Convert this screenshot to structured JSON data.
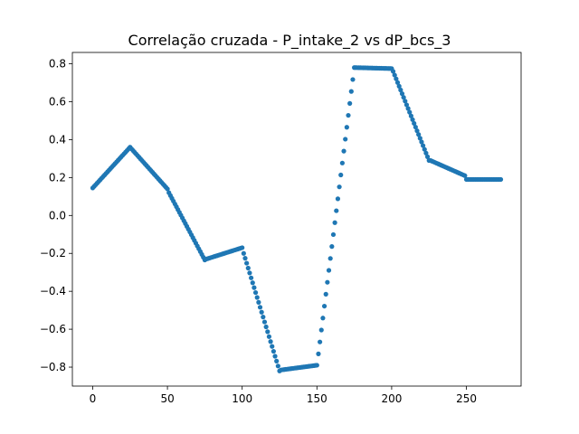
{
  "chart_data": {
    "type": "scatter",
    "title": "Correlação cruzada - P_intake_2 vs dP_bcs_3",
    "xlabel": "",
    "ylabel": "",
    "xlim": [
      -13.6,
      286.6
    ],
    "ylim": [
      -0.9,
      0.86
    ],
    "xticks": [
      0,
      50,
      100,
      150,
      200,
      250
    ],
    "yticks": [
      -0.8,
      -0.6,
      -0.4,
      -0.2,
      0.0,
      0.2,
      0.4,
      0.6,
      0.8
    ],
    "xtick_labels": [
      "0",
      "50",
      "100",
      "150",
      "200",
      "250"
    ],
    "ytick_labels": [
      "−0.8",
      "−0.6",
      "−0.4",
      "−0.2",
      "0.0",
      "0.2",
      "0.4",
      "0.6",
      "0.8"
    ],
    "grid": false,
    "marker_color": "#1f77b4",
    "segments": [
      {
        "x0": 0,
        "x1": 25,
        "y0": 0.145,
        "y1": 0.36
      },
      {
        "x0": 25,
        "x1": 50,
        "y0": 0.36,
        "y1": 0.14
      },
      {
        "x0": 51,
        "x1": 75,
        "y0": 0.12,
        "y1": -0.235
      },
      {
        "x0": 76,
        "x1": 100,
        "y0": -0.23,
        "y1": -0.17
      },
      {
        "x0": 101,
        "x1": 125,
        "y0": -0.2,
        "y1": -0.82
      },
      {
        "x0": 126,
        "x1": 150,
        "y0": -0.815,
        "y1": -0.79
      },
      {
        "x0": 151,
        "x1": 175,
        "y0": -0.73,
        "y1": 0.78
      },
      {
        "x0": 176,
        "x1": 200,
        "y0": 0.78,
        "y1": 0.775
      },
      {
        "x0": 201,
        "x1": 225,
        "y0": 0.76,
        "y1": 0.29
      },
      {
        "x0": 226,
        "x1": 249,
        "y0": 0.29,
        "y1": 0.21
      },
      {
        "x0": 250,
        "x1": 273,
        "y0": 0.19,
        "y1": 0.19
      }
    ]
  }
}
